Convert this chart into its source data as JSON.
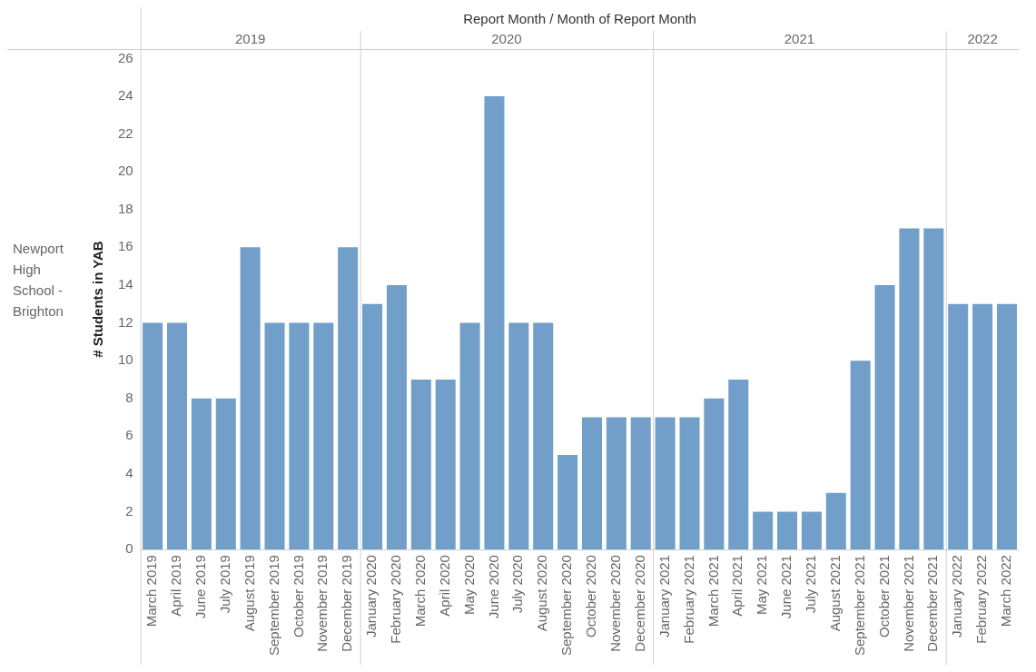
{
  "chart_data": {
    "type": "bar",
    "xlabel": "Report Month / Month of Report Month",
    "ylabel": "# Students in YAB",
    "categories": [
      "March 2019",
      "April 2019",
      "June 2019",
      "July 2019",
      "August 2019",
      "September 2019",
      "October 2019",
      "November 2019",
      "December 2019",
      "January 2020",
      "February 2020",
      "March 2020",
      "April 2020",
      "May 2020",
      "June 2020",
      "July 2020",
      "August 2020",
      "September 2020",
      "October 2020",
      "November 2020",
      "December 2020",
      "January 2021",
      "February 2021",
      "March 2021",
      "April 2021",
      "May 2021",
      "June 2021",
      "July 2021",
      "August 2021",
      "September 2021",
      "October 2021",
      "November 2021",
      "December 2021",
      "January 2022",
      "February 2022",
      "March 2022"
    ],
    "values": [
      12,
      12,
      8,
      8,
      16,
      12,
      12,
      12,
      16,
      13,
      14,
      9,
      9,
      12,
      24,
      12,
      12,
      5,
      7,
      7,
      7,
      7,
      7,
      8,
      9,
      2,
      2,
      2,
      3,
      10,
      14,
      17,
      17,
      13,
      13,
      13
    ],
    "color": "#729fc9",
    "ylim": [
      0,
      26.5
    ],
    "yticks": [
      0,
      2,
      4,
      6,
      8,
      10,
      12,
      14,
      16,
      18,
      20,
      22,
      24,
      26
    ],
    "grid": false,
    "legend": false,
    "annotations": [
      "Newport High School - Brighton",
      "2019",
      "2020",
      "2021",
      "2022"
    ]
  }
}
